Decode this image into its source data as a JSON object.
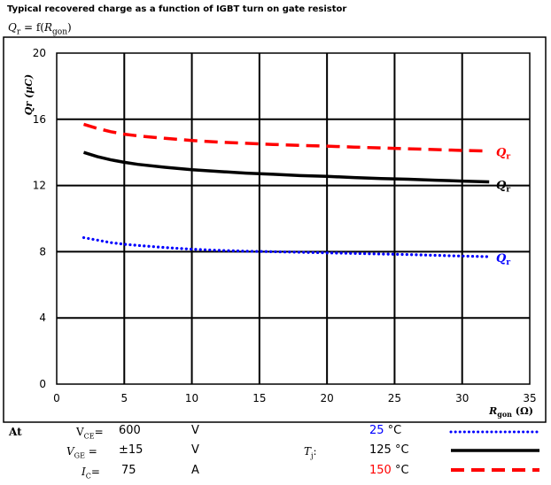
{
  "chart_data": {
    "type": "line",
    "title": "Typical recovered charge as a function of IGBT turn on gate resistor",
    "formula": {
      "prefix": "Q",
      "sub1": "r",
      "mid": " = f(",
      "r": "R",
      "sub2": "gon",
      "suffix": ")"
    },
    "xlabel": {
      "main": "R",
      "sub": "gon",
      "unit": " (Ω)"
    },
    "ylabel": "Qr (µC)",
    "xlim": [
      0,
      35
    ],
    "ylim": [
      0,
      20
    ],
    "x_ticks": [
      "0",
      "5",
      "10",
      "15",
      "20",
      "25",
      "30",
      "35"
    ],
    "y_ticks": [
      "0",
      "4",
      "8",
      "12",
      "16",
      "20"
    ],
    "grid": true,
    "series": [
      {
        "name": "25 °C",
        "color": "#0000ff",
        "style": "dotted",
        "label": "Qr",
        "x": [
          2,
          3,
          4,
          5,
          6,
          8,
          10,
          12,
          14,
          16,
          18,
          20,
          22,
          24,
          26,
          28,
          30,
          32
        ],
        "y": [
          8.85,
          8.7,
          8.55,
          8.45,
          8.38,
          8.25,
          8.15,
          8.08,
          8.03,
          8.0,
          7.97,
          7.93,
          7.9,
          7.86,
          7.83,
          7.78,
          7.74,
          7.7
        ]
      },
      {
        "name": "125 °C",
        "color": "#000000",
        "style": "solid",
        "label": "Qr",
        "x": [
          2,
          3,
          4,
          5,
          6,
          8,
          10,
          12,
          14,
          16,
          18,
          20,
          22,
          24,
          26,
          28,
          30,
          32
        ],
        "y": [
          14.0,
          13.75,
          13.55,
          13.4,
          13.28,
          13.1,
          12.95,
          12.85,
          12.75,
          12.68,
          12.6,
          12.55,
          12.48,
          12.42,
          12.38,
          12.32,
          12.27,
          12.22
        ]
      },
      {
        "name": "150 °C",
        "color": "#ff0000",
        "style": "dashed",
        "label": "Qr",
        "x": [
          2,
          3,
          4,
          5,
          6,
          8,
          10,
          12,
          14,
          16,
          18,
          20,
          22,
          24,
          26,
          28,
          30,
          32
        ],
        "y": [
          15.7,
          15.45,
          15.25,
          15.1,
          15.0,
          14.85,
          14.72,
          14.62,
          14.55,
          14.48,
          14.42,
          14.38,
          14.32,
          14.27,
          14.22,
          14.17,
          14.12,
          14.08
        ]
      }
    ]
  },
  "conditions": {
    "at": "At",
    "vce": {
      "label": "V",
      "sub": "CE",
      "eq": "=",
      "value": "600",
      "unit": "V"
    },
    "vge": {
      "label": "V",
      "sub": "GE",
      "eq": " =",
      "value": "±15",
      "unit": "V"
    },
    "ic": {
      "label": "I",
      "sub": "C",
      "eq": "=",
      "value": "75",
      "unit": "A"
    },
    "tj": {
      "label": "T",
      "sub": "j",
      "eq": ":"
    },
    "temps": [
      {
        "value": "25",
        "unit": " °C",
        "color": "#0000ff"
      },
      {
        "value": "125",
        "unit": " °C",
        "color": "#000000"
      },
      {
        "value": "150",
        "unit": " °C",
        "color": "#ff0000"
      }
    ]
  }
}
